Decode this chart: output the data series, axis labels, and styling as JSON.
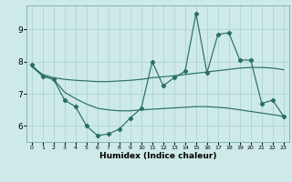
{
  "xlabel": "Humidex (Indice chaleur)",
  "x_data": [
    0,
    1,
    2,
    3,
    4,
    5,
    6,
    7,
    8,
    9,
    10,
    11,
    12,
    13,
    14,
    15,
    16,
    17,
    18,
    19,
    20,
    21,
    22,
    23
  ],
  "y_jagged": [
    7.9,
    7.55,
    7.45,
    6.8,
    6.6,
    6.0,
    5.7,
    5.75,
    5.9,
    6.25,
    6.55,
    8.0,
    7.25,
    7.5,
    7.7,
    9.5,
    7.65,
    8.85,
    8.9,
    8.05,
    8.05,
    6.7,
    6.8,
    6.3
  ],
  "y_upper_trend": [
    7.85,
    7.6,
    7.5,
    7.45,
    7.42,
    7.4,
    7.38,
    7.38,
    7.4,
    7.42,
    7.45,
    7.5,
    7.53,
    7.56,
    7.6,
    7.64,
    7.68,
    7.72,
    7.76,
    7.8,
    7.82,
    7.82,
    7.8,
    7.75
  ],
  "y_lower_trend": [
    7.85,
    7.55,
    7.45,
    7.05,
    6.85,
    6.68,
    6.55,
    6.5,
    6.47,
    6.47,
    6.5,
    6.52,
    6.54,
    6.56,
    6.58,
    6.6,
    6.6,
    6.58,
    6.55,
    6.5,
    6.45,
    6.4,
    6.35,
    6.3
  ],
  "line_color": "#2a6e62",
  "bg_color": "#cdeae8",
  "grid_color": "#aed4d0",
  "xlim": [
    -0.5,
    23.5
  ],
  "ylim": [
    5.5,
    9.75
  ],
  "yticks": [
    6,
    7,
    8,
    9
  ],
  "xticks": [
    0,
    1,
    2,
    3,
    4,
    5,
    6,
    7,
    8,
    9,
    10,
    11,
    12,
    13,
    14,
    15,
    16,
    17,
    18,
    19,
    20,
    21,
    22,
    23
  ]
}
